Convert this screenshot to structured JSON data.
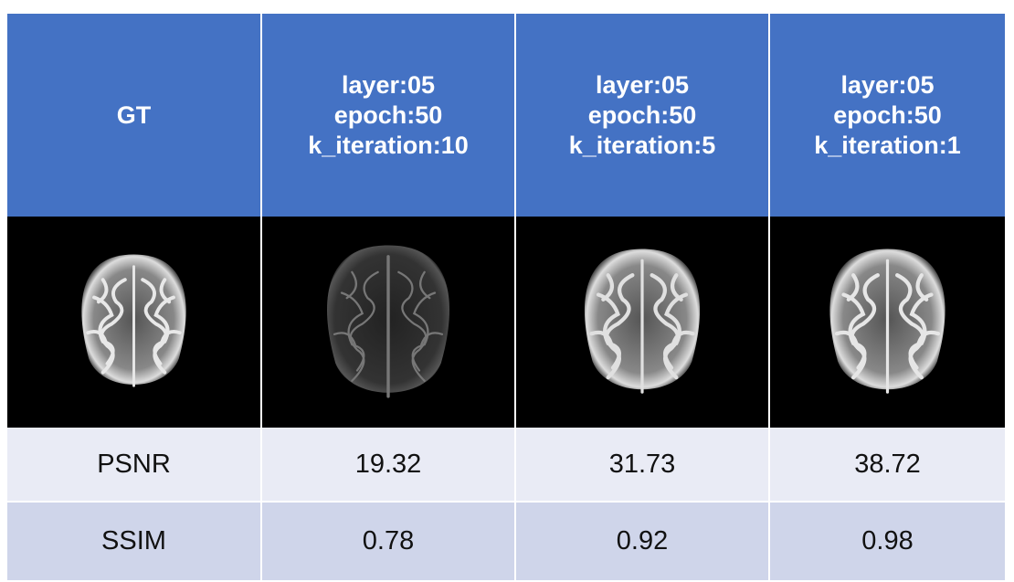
{
  "table": {
    "header": [
      [
        "GT"
      ],
      [
        "layer:05",
        "epoch:50",
        "k_iteration:10"
      ],
      [
        "layer:05",
        "epoch:50",
        "k_iteration:5"
      ],
      [
        "layer:05",
        "epoch:50",
        "k_iteration:1"
      ]
    ],
    "rows": [
      [
        "PSNR",
        19.32,
        31.73,
        38.72
      ],
      [
        "SSIM",
        0.78,
        0.92,
        0.98
      ]
    ]
  }
}
